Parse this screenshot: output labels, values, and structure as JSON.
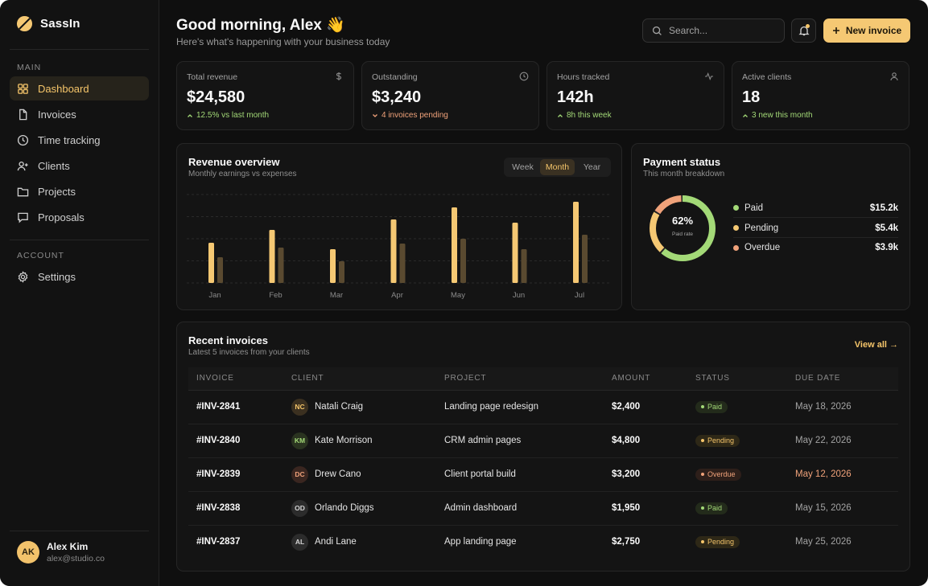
{
  "app": {
    "name": "SassIn",
    "accent": "#f5c873"
  },
  "sidebar": {
    "section_main": "MAIN",
    "section_account": "ACCOUNT",
    "items": [
      {
        "label": "Dashboard",
        "icon": "grid-icon",
        "active": true
      },
      {
        "label": "Invoices",
        "icon": "file-icon"
      },
      {
        "label": "Time tracking",
        "icon": "clock-icon"
      },
      {
        "label": "Clients",
        "icon": "user-plus-icon"
      },
      {
        "label": "Projects",
        "icon": "folder-icon"
      },
      {
        "label": "Proposals",
        "icon": "message-icon"
      }
    ],
    "settings_label": "Settings",
    "user": {
      "initials": "AK",
      "name": "Alex Kim",
      "email": "alex@studio.co"
    }
  },
  "header": {
    "greeting": "Good morning, Alex 👋",
    "subtitle": "Here's what's happening with your business today",
    "search_placeholder": "Search...",
    "new_invoice_label": "New invoice"
  },
  "stats": [
    {
      "label": "Total revenue",
      "value": "$24,580",
      "delta": "12.5% vs last month",
      "trend": "up",
      "icon": "dollar-icon"
    },
    {
      "label": "Outstanding",
      "value": "$3,240",
      "delta": "4 invoices pending",
      "trend": "down",
      "icon": "clock-icon"
    },
    {
      "label": "Hours tracked",
      "value": "142h",
      "delta": "8h this week",
      "trend": "up",
      "icon": "activity-icon"
    },
    {
      "label": "Active clients",
      "value": "18",
      "delta": "3 new this month",
      "trend": "up",
      "icon": "user-icon"
    }
  ],
  "revenue": {
    "title": "Revenue overview",
    "subtitle": "Monthly earnings vs expenses",
    "tabs": [
      "Week",
      "Month",
      "Year"
    ],
    "active_tab": "Month"
  },
  "chart_data": {
    "type": "bar",
    "categories": [
      "Jan",
      "Feb",
      "Mar",
      "Apr",
      "May",
      "Jun",
      "Jul"
    ],
    "series": [
      {
        "values": [
          50,
          66,
          42,
          79,
          94,
          75,
          101
        ],
        "color": "#f5c873"
      },
      {
        "values": [
          32,
          44,
          27,
          49,
          55,
          42,
          60
        ],
        "color": "#5a4a30"
      }
    ],
    "ylim": [
      0,
      110
    ],
    "grid": true
  },
  "payment": {
    "title": "Payment status",
    "subtitle": "This month breakdown",
    "rate_value": "62%",
    "rate_label": "Paid rate",
    "donut": [
      {
        "name": "Paid",
        "fraction": 0.62,
        "color": "#a3d977"
      },
      {
        "name": "Pending",
        "fraction": 0.22,
        "color": "#f5c873"
      },
      {
        "name": "Overdue",
        "fraction": 0.16,
        "color": "#f0a27a"
      }
    ],
    "items": [
      {
        "label": "Paid",
        "value": "$15.2k",
        "color": "#a3d977"
      },
      {
        "label": "Pending",
        "value": "$5.4k",
        "color": "#f5c873"
      },
      {
        "label": "Overdue",
        "value": "$3.9k",
        "color": "#f0a27a"
      }
    ]
  },
  "invoices": {
    "title": "Recent invoices",
    "subtitle": "Latest 5 invoices from your clients",
    "view_all": "View all →",
    "columns": [
      "INVOICE",
      "CLIENT",
      "PROJECT",
      "AMOUNT",
      "STATUS",
      "DUE DATE"
    ],
    "rows": [
      {
        "id": "#INV-2841",
        "initials": "NC",
        "client": "Natali Craig",
        "project": "Landing page redesign",
        "amount": "$2,400",
        "status": "Paid",
        "due": "May 18, 2026",
        "avatar_bg": "#3b3020",
        "avatar_fg": "#f5c56a"
      },
      {
        "id": "#INV-2840",
        "initials": "KM",
        "client": "Kate Morrison",
        "project": "CRM admin pages",
        "amount": "$4,800",
        "status": "Pending",
        "due": "May 22, 2026",
        "avatar_bg": "#2a3320",
        "avatar_fg": "#a3d977"
      },
      {
        "id": "#INV-2839",
        "initials": "DC",
        "client": "Drew Cano",
        "project": "Client portal build",
        "amount": "$3,200",
        "status": "Overdue",
        "due": "May 12, 2026",
        "avatar_bg": "#3a2620",
        "avatar_fg": "#f0a27a"
      },
      {
        "id": "#INV-2838",
        "initials": "OD",
        "client": "Orlando Diggs",
        "project": "Admin dashboard",
        "amount": "$1,950",
        "status": "Paid",
        "due": "May 15, 2026",
        "avatar_bg": "#2c2c2c",
        "avatar_fg": "#d4d4d4"
      },
      {
        "id": "#INV-2837",
        "initials": "AL",
        "client": "Andi Lane",
        "project": "App landing page",
        "amount": "$2,750",
        "status": "Pending",
        "due": "May 25, 2026",
        "avatar_bg": "#2c2c2c",
        "avatar_fg": "#d4d4d4"
      }
    ]
  }
}
